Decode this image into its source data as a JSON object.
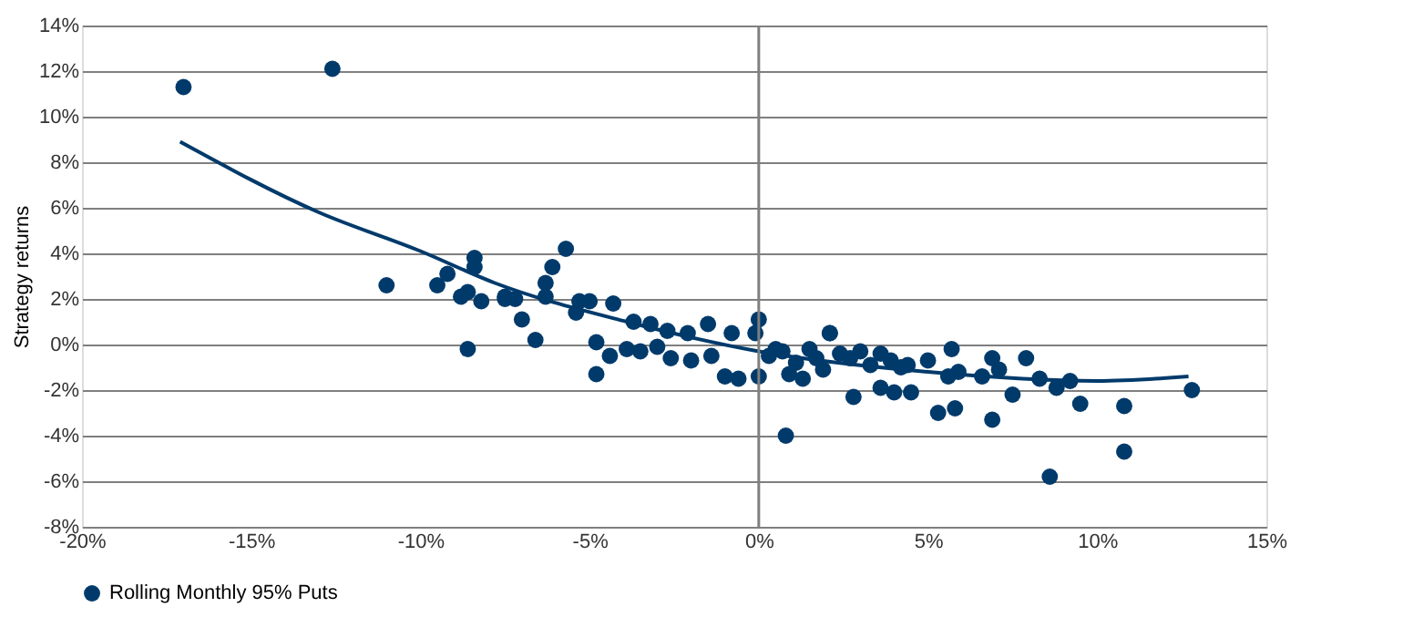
{
  "chart_data": {
    "type": "scatter",
    "ylabel": "Strategy returns",
    "legend": "bottom",
    "grid": "y",
    "xlim": [
      -20,
      15
    ],
    "ylim": [
      -8,
      14
    ],
    "xticks": [
      {
        "value": -20,
        "label": "-20%"
      },
      {
        "value": -15,
        "label": "-15%"
      },
      {
        "value": -10,
        "label": "-10%"
      },
      {
        "value": -5,
        "label": "-5%"
      },
      {
        "value": 0,
        "label": "0%"
      },
      {
        "value": 5,
        "label": "5%"
      },
      {
        "value": 10,
        "label": "10%"
      },
      {
        "value": 15,
        "label": "15%"
      }
    ],
    "yticks": [
      {
        "value": -8,
        "label": "-8%"
      },
      {
        "value": -6,
        "label": "-6%"
      },
      {
        "value": -4,
        "label": "-4%"
      },
      {
        "value": -2,
        "label": "-2%"
      },
      {
        "value": 0,
        "label": "0%"
      },
      {
        "value": 2,
        "label": "2%"
      },
      {
        "value": 4,
        "label": "4%"
      },
      {
        "value": 6,
        "label": "6%"
      },
      {
        "value": 8,
        "label": "8%"
      },
      {
        "value": 10,
        "label": "10%"
      },
      {
        "value": 12,
        "label": "12%"
      },
      {
        "value": 14,
        "label": "14%"
      }
    ],
    "ref_lines": [
      {
        "axis": "x",
        "value": 0,
        "color": "#7f7f7f"
      }
    ],
    "series": [
      {
        "name": "Rolling Monthly 95% Puts",
        "marker": "circle",
        "color": "#003a6b",
        "x": [
          -17.0,
          -12.6,
          -11.0,
          -9.5,
          -9.2,
          -8.8,
          -8.6,
          -8.4,
          -8.4,
          -8.2,
          -7.5,
          -8.6,
          -7.5,
          -7.2,
          -7.0,
          -6.6,
          -6.3,
          -6.1,
          -5.7,
          -6.3,
          -5.4,
          -5.3,
          -5.0,
          -4.8,
          -4.8,
          -4.4,
          -4.3,
          -3.9,
          -3.7,
          -3.5,
          -3.2,
          -3.0,
          -2.7,
          -2.6,
          -2.1,
          -2.0,
          -1.5,
          -1.4,
          -1.0,
          -0.8,
          -0.6,
          -0.1,
          0.0,
          0.0,
          0.5,
          0.8,
          0.9,
          1.3,
          1.7,
          2.1,
          1.9,
          0.3,
          0.7,
          1.1,
          1.5,
          2.4,
          2.7,
          3.0,
          3.3,
          3.6,
          3.9,
          4.2,
          2.1,
          2.8,
          3.6,
          4.0,
          4.5,
          4.4,
          5.0,
          5.3,
          5.7,
          5.8,
          5.6,
          5.9,
          6.6,
          6.9,
          7.1,
          6.9,
          7.5,
          7.9,
          8.3,
          8.6,
          8.8,
          9.2,
          9.5,
          10.8,
          10.8,
          12.8
        ],
        "values": [
          11.3,
          12.1,
          2.6,
          2.6,
          3.1,
          2.1,
          2.3,
          3.8,
          3.4,
          1.9,
          2.0,
          -0.2,
          2.1,
          2.0,
          1.1,
          0.2,
          2.7,
          3.4,
          4.2,
          2.1,
          1.4,
          1.9,
          1.9,
          0.1,
          -1.3,
          -0.5,
          1.8,
          -0.2,
          1.0,
          -0.3,
          0.9,
          -0.1,
          0.6,
          -0.6,
          0.5,
          -0.7,
          0.9,
          -0.5,
          -1.4,
          0.5,
          -1.5,
          0.5,
          1.1,
          -1.4,
          -0.2,
          -4.0,
          -1.3,
          -1.5,
          -0.6,
          0.5,
          -1.1,
          -0.5,
          -0.3,
          -0.8,
          -0.2,
          -0.4,
          -0.6,
          -0.3,
          -0.9,
          -0.4,
          -0.7,
          -1.0,
          0.5,
          -2.3,
          -1.9,
          -2.1,
          -2.1,
          -0.9,
          -0.7,
          -3.0,
          -0.2,
          -2.8,
          -1.4,
          -1.2,
          -1.4,
          -0.6,
          -1.1,
          -3.3,
          -2.2,
          -0.6,
          -1.5,
          -5.8,
          -1.9,
          -1.6,
          -2.6,
          -2.7,
          -4.7,
          -2.0
        ]
      },
      {
        "type": "line",
        "color": "#003a6b",
        "x": [
          -17.1,
          -13.0,
          -10.0,
          -7.8,
          -3.9,
          0.0,
          5.0,
          10.0,
          12.7
        ],
        "values": [
          8.9,
          5.8,
          4.1,
          2.7,
          1.0,
          -0.3,
          -1.2,
          -1.6,
          -1.4
        ]
      }
    ]
  }
}
